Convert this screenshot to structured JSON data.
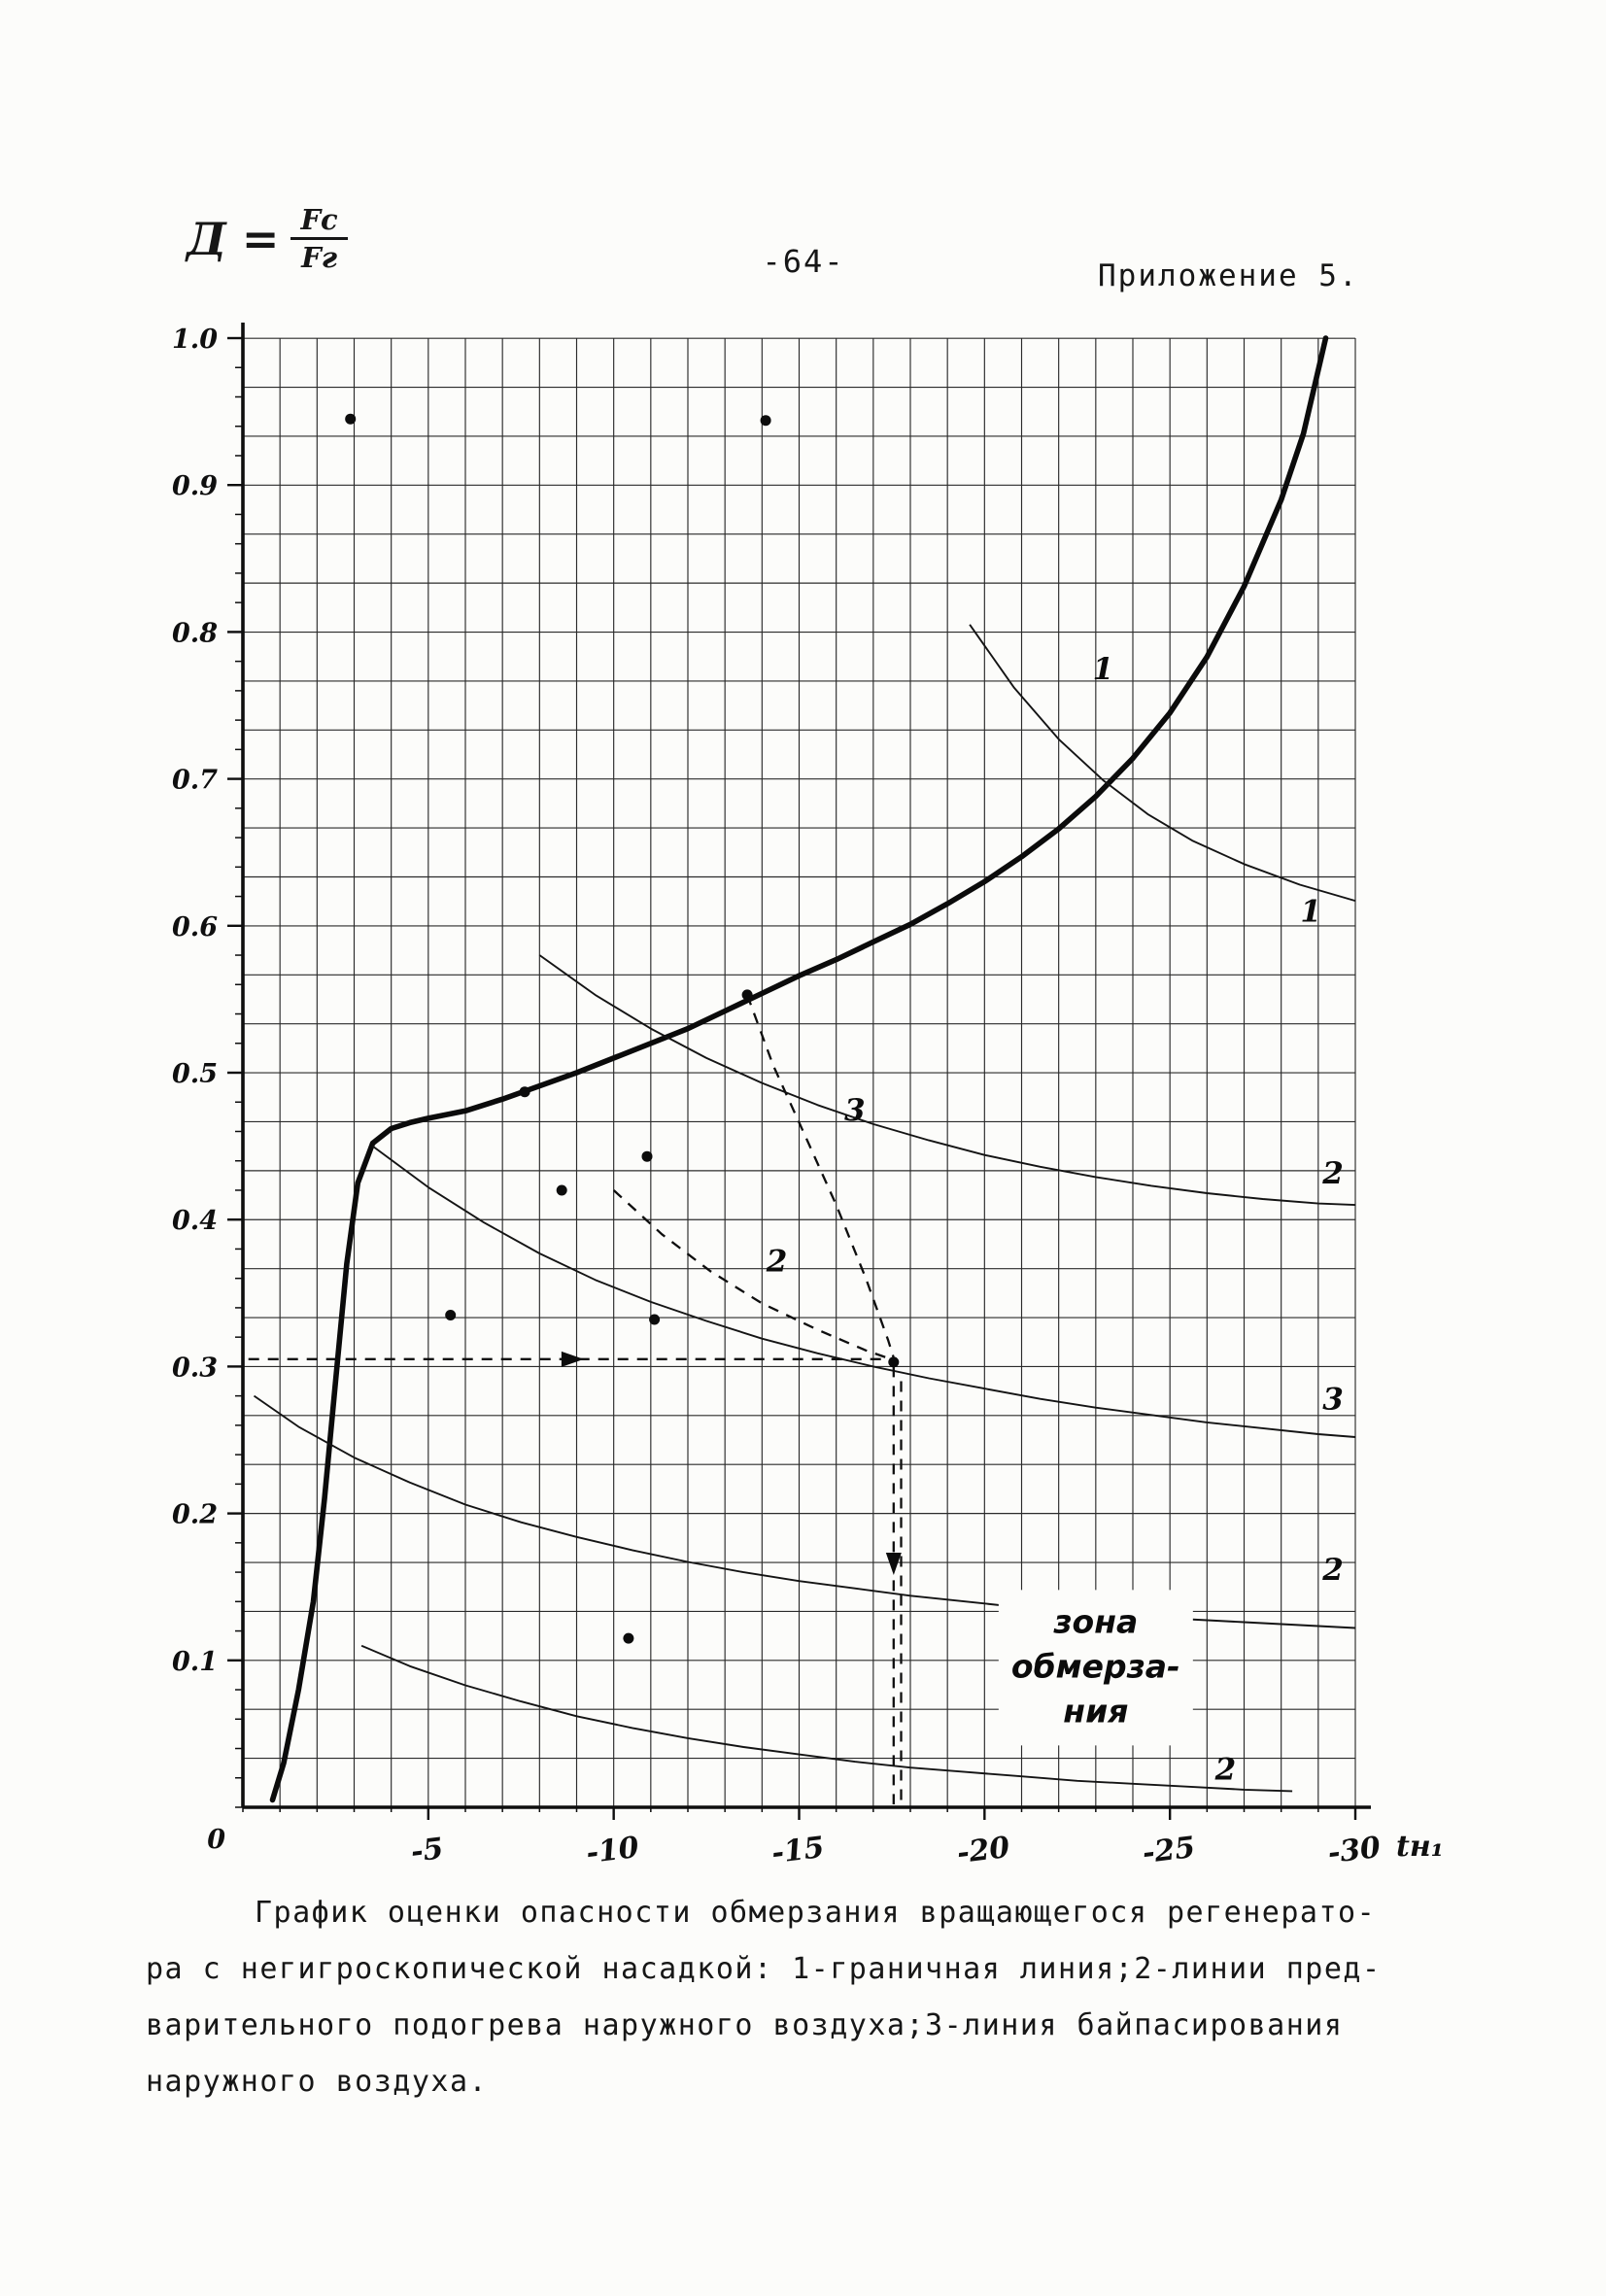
{
  "page": {
    "number": "-64-",
    "appendix": "Приложение 5."
  },
  "formula": {
    "lhs": "Д =",
    "numerator": "Fc",
    "denominator": "Fг"
  },
  "caption": {
    "lines": [
      "График оценки опасности обмерзания вращающегося регенерато-",
      "ра с негигроскопической насадкой: 1-граничная линия;2-линии пред-",
      "варительного подогрева наружного воздуха;3-линия байпасирования",
      "наружного воздуха."
    ]
  },
  "chart_data": {
    "type": "line",
    "title": "",
    "xlabel": "tн₁",
    "ylabel": "Д = Fc/Fг",
    "xlim": [
      0,
      -30
    ],
    "ylim": [
      0,
      1
    ],
    "grid": {
      "x_step": 1,
      "y_step": 0.03333
    },
    "axis_end_label": "tн₁",
    "origin_label": "0",
    "x_ticks": [
      {
        "v": -5,
        "label": "-5"
      },
      {
        "v": -10,
        "label": "-10"
      },
      {
        "v": -15,
        "label": "-15"
      },
      {
        "v": -20,
        "label": "-20"
      },
      {
        "v": -25,
        "label": "-25"
      },
      {
        "v": -30,
        "label": "-30"
      }
    ],
    "y_ticks": [
      {
        "v": 1.0,
        "label": "1.0"
      },
      {
        "v": 0.9,
        "label": "0.9"
      },
      {
        "v": 0.8,
        "label": "0.8"
      },
      {
        "v": 0.7,
        "label": "0.7"
      },
      {
        "v": 0.6,
        "label": "0.6"
      },
      {
        "v": 0.5,
        "label": "0.5"
      },
      {
        "v": 0.4,
        "label": "0.4"
      },
      {
        "v": 0.3,
        "label": "0.3"
      },
      {
        "v": 0.2,
        "label": "0.2"
      },
      {
        "v": 0.1,
        "label": "0.1"
      }
    ],
    "series": [
      {
        "id": "boundary-line",
        "label": "1 — граничная линия",
        "style": "boundary",
        "points": [
          [
            -0.8,
            0.005
          ],
          [
            -1.1,
            0.03
          ],
          [
            -1.5,
            0.08
          ],
          [
            -1.9,
            0.14
          ],
          [
            -2.2,
            0.21
          ],
          [
            -2.5,
            0.29
          ],
          [
            -2.8,
            0.37
          ],
          [
            -3.1,
            0.425
          ],
          [
            -3.5,
            0.452
          ],
          [
            -4,
            0.462
          ],
          [
            -4.5,
            0.466
          ],
          [
            -5,
            0.469
          ],
          [
            -6,
            0.474
          ],
          [
            -7,
            0.482
          ],
          [
            -8,
            0.491
          ],
          [
            -9,
            0.5
          ],
          [
            -10,
            0.51
          ],
          [
            -11,
            0.52
          ],
          [
            -12,
            0.53
          ],
          [
            -13,
            0.542
          ],
          [
            -14,
            0.554
          ],
          [
            -15,
            0.566
          ],
          [
            -16,
            0.577
          ],
          [
            -17,
            0.589
          ],
          [
            -18,
            0.601
          ],
          [
            -19,
            0.615
          ],
          [
            -20,
            0.63
          ],
          [
            -21,
            0.647
          ],
          [
            -22,
            0.666
          ],
          [
            -23,
            0.688
          ],
          [
            -24,
            0.714
          ],
          [
            -25,
            0.745
          ],
          [
            -26,
            0.783
          ],
          [
            -27,
            0.831
          ],
          [
            -28,
            0.89
          ],
          [
            -28.6,
            0.935
          ],
          [
            -29.2,
            1.0
          ]
        ]
      },
      {
        "id": "preheat-line-a",
        "label": "2 — линия предварительного подогрева",
        "style": "thin",
        "points": [
          [
            -19.6,
            0.805
          ],
          [
            -20.8,
            0.762
          ],
          [
            -22,
            0.727
          ],
          [
            -23.2,
            0.699
          ],
          [
            -24.4,
            0.676
          ],
          [
            -25.6,
            0.658
          ],
          [
            -27,
            0.642
          ],
          [
            -28.5,
            0.628
          ],
          [
            -30,
            0.617
          ]
        ]
      },
      {
        "id": "preheat-line-b",
        "label": "2 — линия предварительного подогрева",
        "style": "thin",
        "points": [
          [
            -8,
            0.58
          ],
          [
            -9.5,
            0.553
          ],
          [
            -11,
            0.53
          ],
          [
            -12.5,
            0.51
          ],
          [
            -14,
            0.493
          ],
          [
            -15.5,
            0.478
          ],
          [
            -17,
            0.465
          ],
          [
            -18.5,
            0.454
          ],
          [
            -20,
            0.444
          ],
          [
            -21.5,
            0.436
          ],
          [
            -23,
            0.429
          ],
          [
            -24.5,
            0.423
          ],
          [
            -26,
            0.418
          ],
          [
            -27.5,
            0.414
          ],
          [
            -29,
            0.411
          ],
          [
            -30,
            0.41
          ]
        ]
      },
      {
        "id": "preheat-line-c",
        "label": "2 — линия предварительного подогрева",
        "style": "thin",
        "points": [
          [
            -3.5,
            0.45
          ],
          [
            -5,
            0.422
          ],
          [
            -6.5,
            0.398
          ],
          [
            -8,
            0.377
          ],
          [
            -9.5,
            0.359
          ],
          [
            -11,
            0.344
          ],
          [
            -12.5,
            0.331
          ],
          [
            -14,
            0.319
          ],
          [
            -15.5,
            0.309
          ],
          [
            -17,
            0.3
          ],
          [
            -18.5,
            0.292
          ],
          [
            -20,
            0.285
          ],
          [
            -21.5,
            0.278
          ],
          [
            -23,
            0.272
          ],
          [
            -24.5,
            0.267
          ],
          [
            -26,
            0.262
          ],
          [
            -27.5,
            0.258
          ],
          [
            -29,
            0.254
          ],
          [
            -30,
            0.252
          ]
        ]
      },
      {
        "id": "preheat-line-d",
        "label": "2 — линия предварительного подогрева",
        "style": "thin",
        "points": [
          [
            -0.3,
            0.28
          ],
          [
            -1.5,
            0.259
          ],
          [
            -3,
            0.238
          ],
          [
            -4.5,
            0.221
          ],
          [
            -6,
            0.206
          ],
          [
            -7.5,
            0.194
          ],
          [
            -9,
            0.184
          ],
          [
            -10.5,
            0.175
          ],
          [
            -12,
            0.167
          ],
          [
            -13.5,
            0.16
          ],
          [
            -15,
            0.154
          ],
          [
            -16.5,
            0.149
          ],
          [
            -18,
            0.144
          ],
          [
            -19.5,
            0.14
          ],
          [
            -21,
            0.136
          ],
          [
            -22.5,
            0.133
          ],
          [
            -24,
            0.13
          ],
          [
            -25.5,
            0.128
          ],
          [
            -27,
            0.126
          ],
          [
            -28.5,
            0.124
          ],
          [
            -30,
            0.122
          ]
        ]
      },
      {
        "id": "preheat-line-e",
        "label": "2 — линия предварительного подогрева",
        "style": "thin",
        "points": [
          [
            -3.2,
            0.11
          ],
          [
            -4.5,
            0.096
          ],
          [
            -6,
            0.083
          ],
          [
            -7.5,
            0.072
          ],
          [
            -9,
            0.062
          ],
          [
            -10.5,
            0.054
          ],
          [
            -12,
            0.047
          ],
          [
            -13.5,
            0.041
          ],
          [
            -15,
            0.036
          ],
          [
            -16.5,
            0.031
          ],
          [
            -18,
            0.027
          ],
          [
            -19.5,
            0.024
          ],
          [
            -21,
            0.021
          ],
          [
            -22.5,
            0.018
          ],
          [
            -24,
            0.016
          ],
          [
            -25.5,
            0.014
          ],
          [
            -27,
            0.012
          ],
          [
            -28.3,
            0.011
          ]
        ]
      },
      {
        "id": "bypass-line-upper",
        "label": "3 — линия байпасирования",
        "style": "dashed",
        "points": [
          [
            -13.6,
            0.553
          ],
          [
            -14.3,
            0.505
          ],
          [
            -15.2,
            0.455
          ],
          [
            -16,
            0.41
          ],
          [
            -16.8,
            0.36
          ],
          [
            -17.4,
            0.318
          ],
          [
            -17.6,
            0.302
          ]
        ]
      },
      {
        "id": "bypass-line-lower",
        "label": "2",
        "style": "dashed",
        "points": [
          [
            -10,
            0.42
          ],
          [
            -11.3,
            0.39
          ],
          [
            -12.6,
            0.365
          ],
          [
            -14,
            0.343
          ],
          [
            -15.5,
            0.325
          ],
          [
            -16.8,
            0.311
          ],
          [
            -17.6,
            0.304
          ]
        ]
      },
      {
        "id": "guide-horizontal",
        "label": "",
        "style": "dashed",
        "points": [
          [
            -0.15,
            0.305
          ],
          [
            -17.5,
            0.305
          ]
        ]
      },
      {
        "id": "guide-vertical-a",
        "label": "",
        "style": "dashed",
        "points": [
          [
            -17.55,
            0.3
          ],
          [
            -17.55,
            0.002
          ]
        ]
      },
      {
        "id": "guide-vertical-b",
        "label": "",
        "style": "dashed",
        "points": [
          [
            -17.75,
            0.29
          ],
          [
            -17.75,
            0.002
          ]
        ]
      }
    ],
    "scatter": [
      [
        -2.9,
        0.945
      ],
      [
        -14.1,
        0.944
      ],
      [
        -7.6,
        0.487
      ],
      [
        -13.6,
        0.553
      ],
      [
        -10.9,
        0.443
      ],
      [
        -8.6,
        0.42
      ],
      [
        -5.6,
        0.335
      ],
      [
        -11.1,
        0.332
      ],
      [
        -10.4,
        0.115
      ],
      [
        -17.55,
        0.303
      ]
    ],
    "arrows": [
      {
        "x": -8.8,
        "y": 0.305,
        "dir": "right"
      },
      {
        "x": -17.55,
        "y": 0.168,
        "dir": "down"
      }
    ],
    "annotations": [
      {
        "text": "1",
        "x": -23.2,
        "y": 0.775
      },
      {
        "text": "1",
        "x": -28.8,
        "y": 0.61
      },
      {
        "text": "2",
        "x": -29.4,
        "y": 0.432
      },
      {
        "text": "3",
        "x": -29.4,
        "y": 0.278
      },
      {
        "text": "2",
        "x": -29.4,
        "y": 0.162
      },
      {
        "text": "2",
        "x": -26.5,
        "y": 0.026
      },
      {
        "text": "2",
        "x": -14.4,
        "y": 0.372
      },
      {
        "text": "3",
        "x": -16.5,
        "y": 0.475
      }
    ],
    "zone_label": {
      "x": -23.0,
      "y": 0.095,
      "lines": [
        "зона",
        "обмерза-",
        "ния"
      ]
    }
  }
}
